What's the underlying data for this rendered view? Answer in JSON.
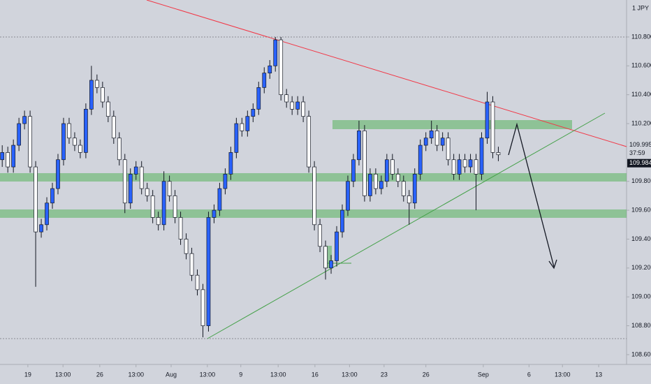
{
  "chart_data": {
    "type": "candlestick",
    "symbol_unit": "1 JPY",
    "up_color": "#2962ff",
    "down_color": "#ffffff",
    "outline_color": "#131722",
    "open": [
      109.95,
      110.0,
      109.9,
      110.05,
      110.2,
      110.25,
      109.9,
      109.45,
      109.5,
      109.65,
      109.75,
      109.95,
      110.2,
      110.1,
      110.05,
      110.0,
      110.3,
      110.5,
      110.45,
      110.35,
      110.25,
      110.1,
      109.95,
      109.65,
      109.85,
      109.9,
      109.75,
      109.7,
      109.55,
      109.5,
      109.8,
      109.7,
      109.55,
      109.4,
      109.3,
      109.15,
      109.05,
      108.8,
      109.55,
      109.6,
      109.75,
      109.85,
      110.0,
      110.2,
      110.15,
      110.25,
      110.3,
      110.45,
      110.55,
      110.6,
      110.78,
      110.4,
      110.35,
      110.3,
      110.35,
      110.25,
      109.9,
      109.5,
      109.35,
      109.2,
      109.25,
      109.45,
      109.6,
      109.8,
      109.95,
      110.15,
      109.7,
      109.85,
      109.75,
      109.8,
      109.95,
      109.85,
      109.8,
      109.7,
      109.65,
      109.85,
      110.05,
      110.1,
      110.15,
      110.05,
      110.1,
      109.95,
      109.85,
      109.95,
      109.9,
      109.95,
      109.85,
      110.1,
      110.35,
      110.0
    ],
    "high": [
      110.05,
      110.04,
      110.09,
      110.24,
      110.29,
      110.29,
      109.94,
      109.54,
      109.69,
      109.79,
      109.99,
      110.24,
      110.24,
      110.14,
      110.09,
      110.34,
      110.6,
      110.54,
      110.49,
      110.39,
      110.29,
      110.14,
      109.99,
      109.89,
      109.94,
      109.94,
      109.79,
      109.74,
      109.59,
      109.87,
      109.84,
      109.74,
      109.59,
      109.44,
      109.34,
      109.19,
      109.09,
      109.59,
      109.64,
      109.79,
      109.89,
      110.04,
      110.24,
      110.24,
      110.29,
      110.34,
      110.49,
      110.59,
      110.64,
      110.8,
      110.8,
      110.44,
      110.39,
      110.39,
      110.39,
      110.29,
      109.94,
      109.54,
      109.39,
      109.29,
      109.49,
      109.64,
      109.84,
      109.99,
      110.22,
      110.19,
      109.89,
      109.89,
      109.84,
      109.99,
      109.99,
      109.89,
      109.84,
      109.74,
      109.89,
      110.09,
      110.14,
      110.22,
      110.19,
      110.14,
      110.14,
      109.99,
      109.99,
      109.99,
      109.99,
      109.99,
      110.14,
      110.42,
      110.39,
      110.04
    ],
    "low": [
      109.9,
      109.86,
      109.86,
      110.01,
      110.16,
      109.86,
      109.07,
      109.41,
      109.46,
      109.61,
      109.71,
      109.91,
      110.06,
      110.01,
      109.96,
      109.96,
      110.26,
      110.41,
      110.31,
      110.21,
      110.06,
      109.91,
      109.58,
      109.61,
      109.81,
      109.71,
      109.66,
      109.51,
      109.46,
      109.46,
      109.66,
      109.51,
      109.36,
      109.26,
      109.11,
      109.01,
      108.72,
      108.76,
      109.51,
      109.56,
      109.71,
      109.81,
      109.96,
      110.11,
      110.11,
      110.21,
      110.26,
      110.41,
      110.51,
      110.56,
      110.36,
      110.31,
      110.26,
      110.26,
      110.21,
      109.86,
      109.46,
      109.31,
      109.12,
      109.16,
      109.21,
      109.41,
      109.56,
      109.76,
      109.91,
      109.66,
      109.66,
      109.71,
      109.71,
      109.76,
      109.81,
      109.76,
      109.66,
      109.5,
      109.61,
      109.81,
      110.01,
      110.06,
      110.01,
      110.01,
      109.91,
      109.81,
      109.81,
      109.86,
      109.86,
      109.6,
      109.81,
      110.06,
      109.96,
      109.94
    ],
    "close": [
      110.0,
      109.9,
      110.05,
      110.2,
      110.25,
      109.9,
      109.45,
      109.5,
      109.65,
      109.75,
      109.95,
      110.2,
      110.1,
      110.05,
      110.0,
      110.3,
      110.5,
      110.45,
      110.35,
      110.25,
      110.1,
      109.95,
      109.65,
      109.85,
      109.9,
      109.75,
      109.7,
      109.55,
      109.5,
      109.8,
      109.7,
      109.55,
      109.4,
      109.3,
      109.15,
      109.05,
      108.8,
      109.55,
      109.6,
      109.75,
      109.85,
      110.0,
      110.2,
      110.15,
      110.25,
      110.3,
      110.45,
      110.55,
      110.6,
      110.78,
      110.4,
      110.35,
      110.3,
      110.35,
      110.25,
      109.9,
      109.5,
      109.35,
      109.2,
      109.25,
      109.45,
      109.6,
      109.8,
      109.95,
      110.15,
      109.7,
      109.85,
      109.75,
      109.8,
      109.95,
      109.85,
      109.8,
      109.7,
      109.65,
      109.85,
      110.05,
      110.1,
      110.15,
      110.05,
      110.1,
      109.95,
      109.85,
      109.95,
      109.9,
      109.95,
      109.85,
      110.1,
      110.35,
      110.0,
      109.984
    ],
    "ylim": [
      108.532,
      111.056
    ],
    "yticks": [
      {
        "value": 110.8,
        "label": "110.800"
      },
      {
        "value": 110.6,
        "label": "110.600"
      },
      {
        "value": 110.4,
        "label": "110.400"
      },
      {
        "value": 110.2,
        "label": "110.200"
      },
      {
        "value": 109.8,
        "label": "109.800"
      },
      {
        "value": 109.6,
        "label": "109.600"
      },
      {
        "value": 109.4,
        "label": "109.400"
      },
      {
        "value": 109.2,
        "label": "109.200"
      },
      {
        "value": 109.0,
        "label": "109.000"
      },
      {
        "value": 108.8,
        "label": "108.800"
      },
      {
        "value": 108.6,
        "label": "108.600"
      }
    ],
    "price_markers": [
      {
        "value": 109.995,
        "label": "109.995"
      },
      {
        "value": 109.984,
        "label": "109.984"
      }
    ],
    "countdown": "37:59",
    "xlim": [
      -0.4,
      112
    ],
    "xticks": [
      {
        "value": 4.6,
        "label": "19"
      },
      {
        "value": 10.9,
        "label": "13:00"
      },
      {
        "value": 17.5,
        "label": "26"
      },
      {
        "value": 24.0,
        "label": "13:00"
      },
      {
        "value": 30.3,
        "label": "Aug"
      },
      {
        "value": 36.8,
        "label": "13:00"
      },
      {
        "value": 42.8,
        "label": "9"
      },
      {
        "value": 49.5,
        "label": "13:00"
      },
      {
        "value": 56.1,
        "label": "16"
      },
      {
        "value": 62.3,
        "label": "13:00"
      },
      {
        "value": 68.5,
        "label": "23"
      },
      {
        "value": 76.0,
        "label": "26"
      },
      {
        "value": 86.3,
        "label": "Sep"
      },
      {
        "value": 94.5,
        "label": "6"
      },
      {
        "value": 100.5,
        "label": "13:00"
      },
      {
        "value": 107.0,
        "label": "13"
      }
    ]
  }
}
